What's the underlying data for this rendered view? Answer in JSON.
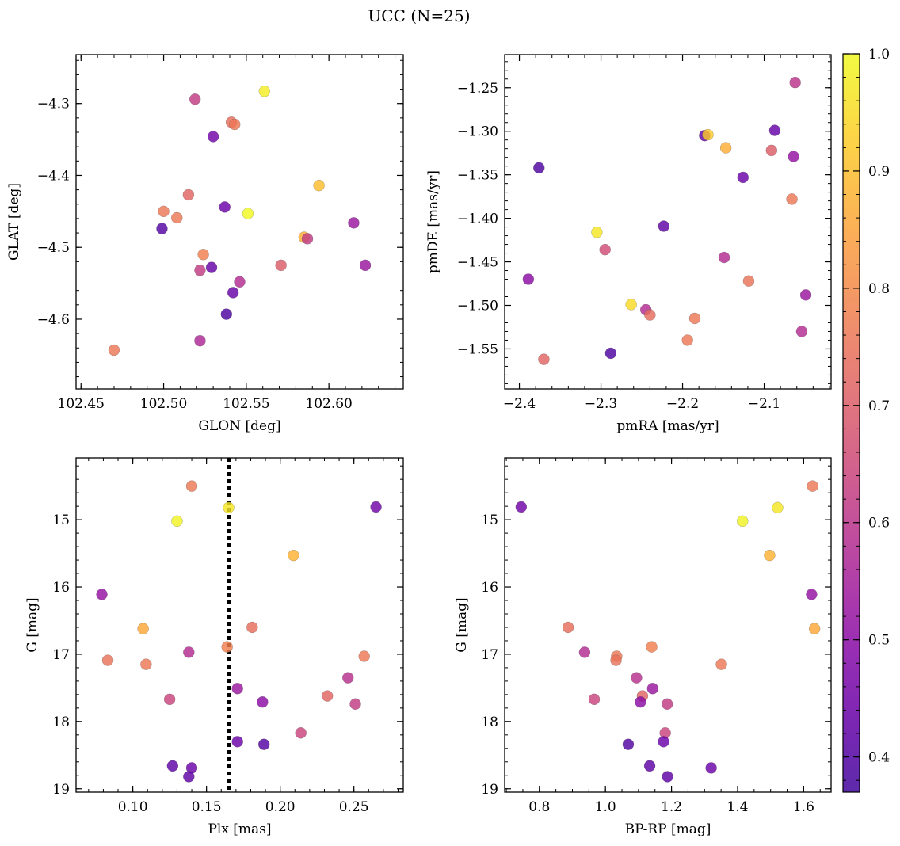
{
  "figure": {
    "title": "UCC (N=25)"
  },
  "colorbar": {
    "colormap": "plasma",
    "range": [
      0.37,
      1.0
    ],
    "ticks": [
      0.4,
      0.5,
      0.6,
      0.7,
      0.8,
      0.9,
      1.0
    ],
    "tick_labels": [
      "0.4",
      "0.5",
      "0.6",
      "0.7",
      "0.8",
      "0.9",
      "1.0"
    ]
  },
  "chart_data": [
    {
      "type": "scatter",
      "id": "glon-glat",
      "xlabel": "GLON [deg]",
      "ylabel": "GLAT [deg]",
      "xlim": [
        102.447,
        102.645
      ],
      "ylim": [
        -4.697,
        -4.232
      ],
      "y_inverted": false,
      "xticks": [
        102.45,
        102.5,
        102.55,
        102.6
      ],
      "xtick_labels": [
        "102.45",
        "102.50",
        "102.55",
        "102.60"
      ],
      "yticks": [
        -4.3,
        -4.4,
        -4.5,
        -4.6
      ],
      "ytick_labels": [
        "−4.3",
        "−4.4",
        "−4.5",
        "−4.6"
      ],
      "x_minor": 0.01,
      "y_minor": 0.02,
      "points": [
        {
          "x": 102.519,
          "y": -4.294,
          "c": 0.62
        },
        {
          "x": 102.561,
          "y": -4.283,
          "c": 0.98
        },
        {
          "x": 102.541,
          "y": -4.326,
          "c": 0.74
        },
        {
          "x": 102.543,
          "y": -4.329,
          "c": 0.76
        },
        {
          "x": 102.53,
          "y": -4.346,
          "c": 0.45
        },
        {
          "x": 102.594,
          "y": -4.414,
          "c": 0.9
        },
        {
          "x": 102.515,
          "y": -4.427,
          "c": 0.72
        },
        {
          "x": 102.537,
          "y": -4.444,
          "c": 0.44
        },
        {
          "x": 102.551,
          "y": -4.453,
          "c": 1.0
        },
        {
          "x": 102.5,
          "y": -4.45,
          "c": 0.76
        },
        {
          "x": 102.508,
          "y": -4.459,
          "c": 0.76
        },
        {
          "x": 102.499,
          "y": -4.474,
          "c": 0.4
        },
        {
          "x": 102.615,
          "y": -4.466,
          "c": 0.53
        },
        {
          "x": 102.585,
          "y": -4.486,
          "c": 0.87
        },
        {
          "x": 102.587,
          "y": -4.488,
          "c": 0.62
        },
        {
          "x": 102.524,
          "y": -4.51,
          "c": 0.78
        },
        {
          "x": 102.522,
          "y": -4.532,
          "c": 0.62
        },
        {
          "x": 102.529,
          "y": -4.528,
          "c": 0.43
        },
        {
          "x": 102.571,
          "y": -4.525,
          "c": 0.7
        },
        {
          "x": 102.622,
          "y": -4.525,
          "c": 0.53
        },
        {
          "x": 102.546,
          "y": -4.548,
          "c": 0.58
        },
        {
          "x": 102.542,
          "y": -4.563,
          "c": 0.43
        },
        {
          "x": 102.538,
          "y": -4.593,
          "c": 0.39
        },
        {
          "x": 102.522,
          "y": -4.63,
          "c": 0.57
        },
        {
          "x": 102.47,
          "y": -4.643,
          "c": 0.76
        }
      ]
    },
    {
      "type": "scatter",
      "id": "pmra-pmde",
      "xlabel": "pmRA [mas/yr]",
      "ylabel": "pmDE [mas/yr]",
      "xlim": [
        -2.418,
        -2.018
      ],
      "ylim": [
        -1.596,
        -1.212
      ],
      "y_inverted": false,
      "xticks": [
        -2.4,
        -2.3,
        -2.2,
        -2.1
      ],
      "xtick_labels": [
        "−2.4",
        "−2.3",
        "−2.2",
        "−2.1"
      ],
      "yticks": [
        -1.25,
        -1.3,
        -1.35,
        -1.4,
        -1.45,
        -1.5,
        -1.55
      ],
      "ytick_labels": [
        "−1.25",
        "−1.30",
        "−1.35",
        "−1.40",
        "−1.45",
        "−1.50",
        "−1.55"
      ],
      "x_minor": 0.02,
      "y_minor": 0.01,
      "points": [
        {
          "x": -2.062,
          "y": -1.244,
          "c": 0.6
        },
        {
          "x": -2.173,
          "y": -1.305,
          "c": 0.42
        },
        {
          "x": -2.169,
          "y": -1.304,
          "c": 0.92
        },
        {
          "x": -2.087,
          "y": -1.299,
          "c": 0.43
        },
        {
          "x": -2.147,
          "y": -1.319,
          "c": 0.87
        },
        {
          "x": -2.091,
          "y": -1.322,
          "c": 0.7
        },
        {
          "x": -2.064,
          "y": -1.329,
          "c": 0.52
        },
        {
          "x": -2.376,
          "y": -1.342,
          "c": 0.39
        },
        {
          "x": -2.126,
          "y": -1.353,
          "c": 0.44
        },
        {
          "x": -2.066,
          "y": -1.378,
          "c": 0.76
        },
        {
          "x": -2.223,
          "y": -1.409,
          "c": 0.42
        },
        {
          "x": -2.305,
          "y": -1.416,
          "c": 0.97
        },
        {
          "x": -2.295,
          "y": -1.436,
          "c": 0.66
        },
        {
          "x": -2.149,
          "y": -1.445,
          "c": 0.58
        },
        {
          "x": -2.389,
          "y": -1.47,
          "c": 0.5
        },
        {
          "x": -2.119,
          "y": -1.472,
          "c": 0.75
        },
        {
          "x": -2.049,
          "y": -1.488,
          "c": 0.53
        },
        {
          "x": -2.263,
          "y": -1.499,
          "c": 0.95
        },
        {
          "x": -2.245,
          "y": -1.505,
          "c": 0.58
        },
        {
          "x": -2.24,
          "y": -1.511,
          "c": 0.74
        },
        {
          "x": -2.185,
          "y": -1.515,
          "c": 0.76
        },
        {
          "x": -2.054,
          "y": -1.53,
          "c": 0.58
        },
        {
          "x": -2.194,
          "y": -1.54,
          "c": 0.76
        },
        {
          "x": -2.288,
          "y": -1.555,
          "c": 0.39
        },
        {
          "x": -2.37,
          "y": -1.562,
          "c": 0.72
        }
      ]
    },
    {
      "type": "scatter",
      "id": "plx-g",
      "xlabel": "Plx [mas]",
      "ylabel": "G [mag]",
      "xlim": [
        0.0615,
        0.2835
      ],
      "ylim": [
        19.05,
        14.08
      ],
      "y_inverted": true,
      "xticks": [
        0.1,
        0.15,
        0.2,
        0.25
      ],
      "xtick_labels": [
        "0.10",
        "0.15",
        "0.20",
        "0.25"
      ],
      "yticks": [
        15,
        16,
        17,
        18,
        19
      ],
      "ytick_labels": [
        "15",
        "16",
        "17",
        "18",
        "19"
      ],
      "x_minor": 0.01,
      "y_minor": 0.2,
      "vline": 0.165,
      "points": [
        {
          "x": 0.14,
          "y": 14.5,
          "c": 0.76
        },
        {
          "x": 0.165,
          "y": 14.82,
          "c": 0.97
        },
        {
          "x": 0.265,
          "y": 14.81,
          "c": 0.45
        },
        {
          "x": 0.13,
          "y": 15.02,
          "c": 0.99
        },
        {
          "x": 0.209,
          "y": 15.53,
          "c": 0.88
        },
        {
          "x": 0.079,
          "y": 16.11,
          "c": 0.52
        },
        {
          "x": 0.107,
          "y": 16.62,
          "c": 0.86
        },
        {
          "x": 0.181,
          "y": 16.6,
          "c": 0.74
        },
        {
          "x": 0.164,
          "y": 16.89,
          "c": 0.78
        },
        {
          "x": 0.138,
          "y": 16.97,
          "c": 0.58
        },
        {
          "x": 0.257,
          "y": 17.03,
          "c": 0.76
        },
        {
          "x": 0.083,
          "y": 17.09,
          "c": 0.75
        },
        {
          "x": 0.109,
          "y": 17.15,
          "c": 0.76
        },
        {
          "x": 0.246,
          "y": 17.35,
          "c": 0.59
        },
        {
          "x": 0.171,
          "y": 17.51,
          "c": 0.53
        },
        {
          "x": 0.232,
          "y": 17.62,
          "c": 0.72
        },
        {
          "x": 0.125,
          "y": 17.67,
          "c": 0.64
        },
        {
          "x": 0.188,
          "y": 17.71,
          "c": 0.5
        },
        {
          "x": 0.251,
          "y": 17.74,
          "c": 0.62
        },
        {
          "x": 0.214,
          "y": 18.17,
          "c": 0.64
        },
        {
          "x": 0.171,
          "y": 18.3,
          "c": 0.44
        },
        {
          "x": 0.189,
          "y": 18.34,
          "c": 0.4
        },
        {
          "x": 0.127,
          "y": 18.66,
          "c": 0.42
        },
        {
          "x": 0.14,
          "y": 18.69,
          "c": 0.44
        },
        {
          "x": 0.138,
          "y": 18.82,
          "c": 0.42
        }
      ]
    },
    {
      "type": "scatter",
      "id": "bprp-g",
      "xlabel": "BP-RP [mag]",
      "ylabel": "G [mag]",
      "xlim": [
        0.695,
        1.683
      ],
      "ylim": [
        19.05,
        14.08
      ],
      "y_inverted": true,
      "xticks": [
        0.8,
        1.0,
        1.2,
        1.4,
        1.6
      ],
      "xtick_labels": [
        "0.8",
        "1.0",
        "1.2",
        "1.4",
        "1.6"
      ],
      "yticks": [
        15,
        16,
        17,
        18,
        19
      ],
      "ytick_labels": [
        "15",
        "16",
        "17",
        "18",
        "19"
      ],
      "x_minor": 0.05,
      "y_minor": 0.2,
      "points": [
        {
          "x": 1.627,
          "y": 14.5,
          "c": 0.76
        },
        {
          "x": 0.745,
          "y": 14.81,
          "c": 0.45
        },
        {
          "x": 1.521,
          "y": 14.82,
          "c": 0.97
        },
        {
          "x": 1.415,
          "y": 15.02,
          "c": 0.99
        },
        {
          "x": 1.497,
          "y": 15.53,
          "c": 0.88
        },
        {
          "x": 1.624,
          "y": 16.11,
          "c": 0.52
        },
        {
          "x": 0.887,
          "y": 16.6,
          "c": 0.74
        },
        {
          "x": 1.633,
          "y": 16.62,
          "c": 0.86
        },
        {
          "x": 1.14,
          "y": 16.89,
          "c": 0.78
        },
        {
          "x": 0.937,
          "y": 16.97,
          "c": 0.58
        },
        {
          "x": 1.034,
          "y": 17.03,
          "c": 0.76
        },
        {
          "x": 1.032,
          "y": 17.09,
          "c": 0.75
        },
        {
          "x": 1.351,
          "y": 17.15,
          "c": 0.76
        },
        {
          "x": 1.094,
          "y": 17.35,
          "c": 0.59
        },
        {
          "x": 1.143,
          "y": 17.51,
          "c": 0.53
        },
        {
          "x": 1.112,
          "y": 17.62,
          "c": 0.72
        },
        {
          "x": 0.966,
          "y": 17.67,
          "c": 0.64
        },
        {
          "x": 1.106,
          "y": 17.71,
          "c": 0.5
        },
        {
          "x": 1.187,
          "y": 17.74,
          "c": 0.62
        },
        {
          "x": 1.181,
          "y": 18.17,
          "c": 0.64
        },
        {
          "x": 1.176,
          "y": 18.3,
          "c": 0.44
        },
        {
          "x": 1.069,
          "y": 18.34,
          "c": 0.4
        },
        {
          "x": 1.134,
          "y": 18.66,
          "c": 0.42
        },
        {
          "x": 1.32,
          "y": 18.69,
          "c": 0.44
        },
        {
          "x": 1.188,
          "y": 18.82,
          "c": 0.42
        }
      ]
    }
  ]
}
